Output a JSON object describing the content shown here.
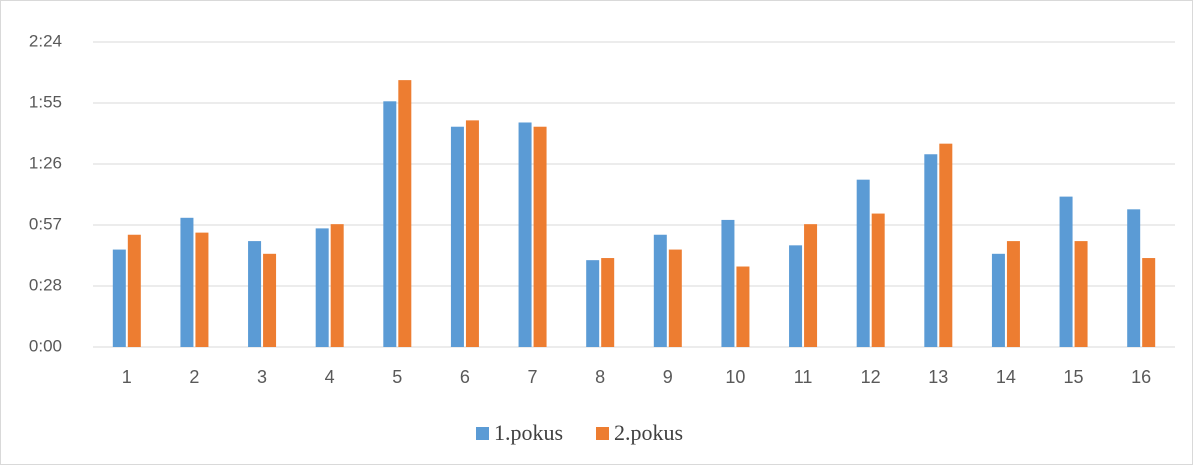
{
  "chart_data": {
    "type": "bar",
    "categories": [
      "1",
      "2",
      "3",
      "4",
      "5",
      "6",
      "7",
      "8",
      "9",
      "10",
      "11",
      "12",
      "13",
      "14",
      "15",
      "16"
    ],
    "series": [
      {
        "name": "1.pokus",
        "color": "#5b9bd5",
        "values": [
          46,
          61,
          50,
          56,
          116,
          104,
          106,
          41,
          53,
          60,
          48,
          79,
          91,
          44,
          71,
          65
        ]
      },
      {
        "name": "2.pokus",
        "color": "#ed7d31",
        "values": [
          53,
          54,
          44,
          58,
          126,
          107,
          104,
          42,
          46,
          38,
          58,
          63,
          96,
          50,
          50,
          42
        ]
      }
    ],
    "ylim": [
      0,
      144
    ],
    "yticks": [
      {
        "value": 0,
        "label": "0:00"
      },
      {
        "value": 28.8,
        "label": "0:28"
      },
      {
        "value": 57.6,
        "label": "0:57"
      },
      {
        "value": 86.4,
        "label": "1:26"
      },
      {
        "value": 115.2,
        "label": "1:55"
      },
      {
        "value": 144,
        "label": "2:24"
      }
    ],
    "grid": true,
    "legend": "bottom"
  }
}
